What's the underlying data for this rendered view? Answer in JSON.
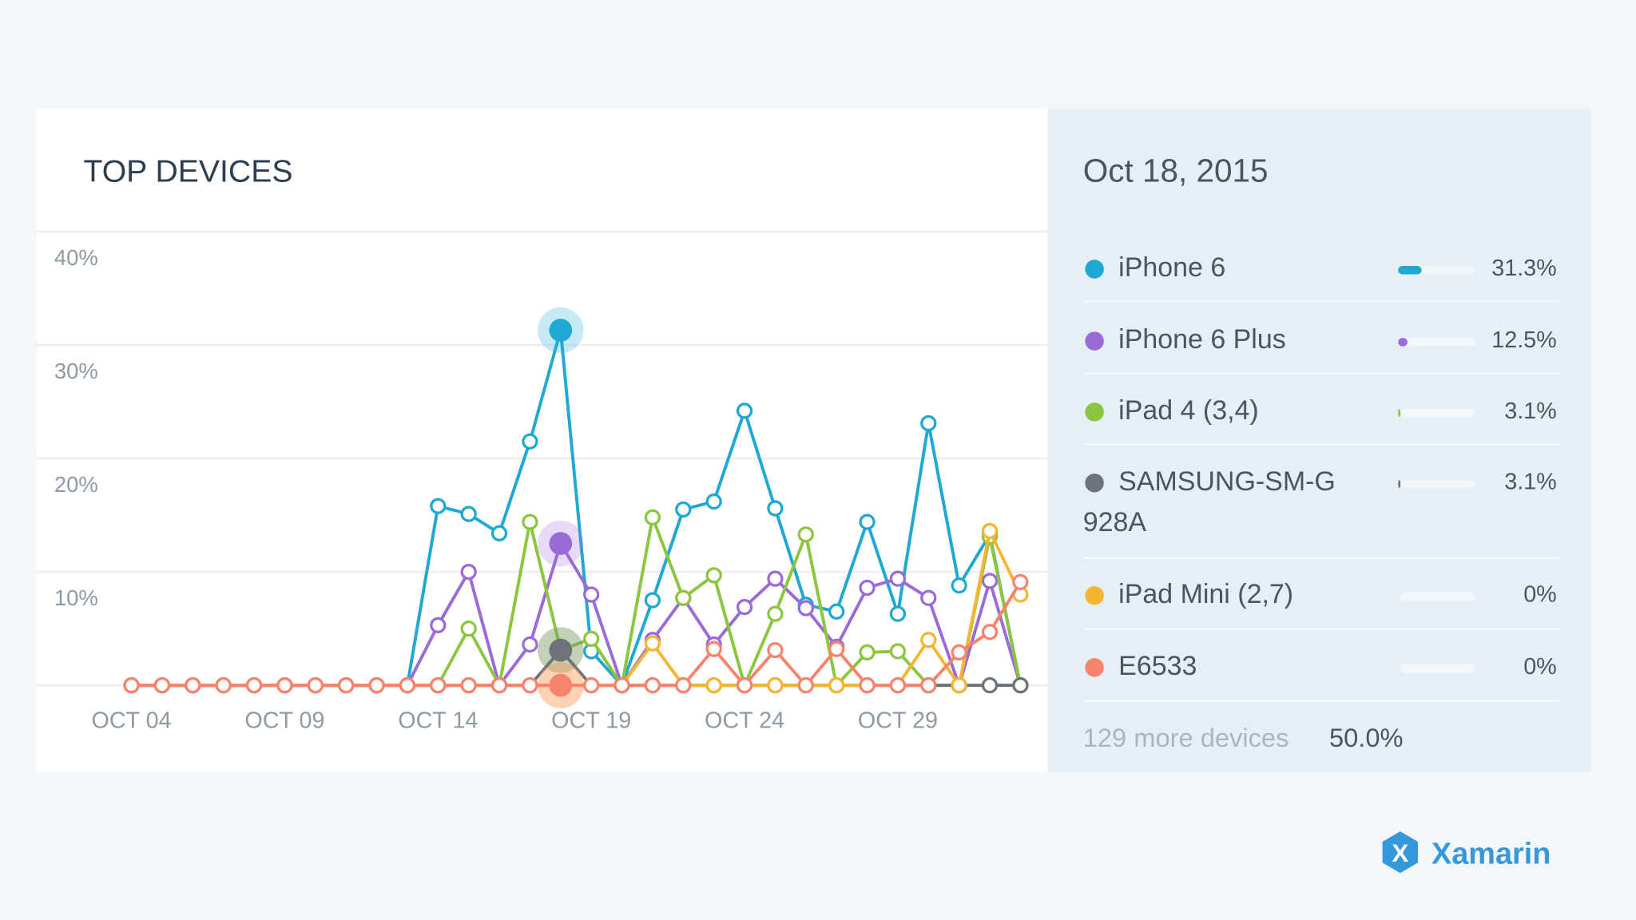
{
  "chart_data": {
    "type": "line",
    "title": "TOP DEVICES",
    "categories": [
      "OCT 04",
      null,
      null,
      null,
      null,
      "OCT 09",
      null,
      null,
      null,
      null,
      "OCT 14",
      null,
      null,
      null,
      null,
      "OCT 19",
      null,
      null,
      null,
      null,
      "OCT 24",
      null,
      null,
      null,
      null,
      "OCT 29",
      null,
      null,
      null,
      null
    ],
    "series": [
      {
        "name": "iPhone 6",
        "color": "#1fa8d2",
        "values": [
          0,
          0,
          0,
          0,
          0,
          0,
          0,
          0,
          0,
          0,
          15.8,
          15.1,
          13.4,
          21.5,
          31.3,
          3,
          0,
          7.5,
          15.5,
          16.2,
          24.2,
          15.6,
          7.1,
          6.5,
          14.4,
          6.3,
          23.1,
          8.8,
          13.3,
          0
        ]
      },
      {
        "name": "iPhone 6 Plus",
        "color": "#9a6bd6",
        "values": [
          0,
          0,
          0,
          0,
          0,
          0,
          0,
          0,
          0,
          0,
          5.3,
          10,
          0,
          3.6,
          12.5,
          8,
          0,
          4,
          7.7,
          3.6,
          6.9,
          9.4,
          6.8,
          3.4,
          8.6,
          9.4,
          7.7,
          0,
          9.2,
          0
        ]
      },
      {
        "name": "iPad 4 (3,4)",
        "color": "#8cc63f",
        "values": [
          0,
          0,
          0,
          0,
          0,
          0,
          0,
          0,
          0,
          0,
          0,
          5,
          0,
          14.4,
          3.1,
          4.1,
          0,
          14.8,
          7.7,
          9.7,
          0,
          6.3,
          13.3,
          0,
          2.9,
          3,
          0,
          0,
          13.1,
          0
        ]
      },
      {
        "name": "SAMSUNG-SM-G\n928A",
        "color": "#6d7378",
        "values": [
          0,
          0,
          0,
          0,
          0,
          0,
          0,
          0,
          0,
          0,
          0,
          0,
          0,
          0,
          3.1,
          0,
          0,
          0,
          0,
          0,
          0,
          0,
          0,
          0,
          0,
          0,
          0,
          0,
          0,
          0
        ]
      },
      {
        "name": "iPad Mini (2,7)",
        "color": "#f5b52e",
        "values": [
          0,
          0,
          0,
          0,
          0,
          0,
          0,
          0,
          0,
          0,
          0,
          0,
          0,
          0,
          0,
          0,
          0,
          3.7,
          0,
          0,
          0,
          0,
          0,
          0,
          0,
          0,
          4,
          0,
          13.6,
          8
        ]
      },
      {
        "name": "E6533",
        "color": "#f7836d",
        "values": [
          0,
          0,
          0,
          0,
          0,
          0,
          0,
          0,
          0,
          0,
          0,
          0,
          0,
          0,
          0,
          0,
          0,
          0,
          0,
          3.2,
          0,
          3.1,
          0,
          3.2,
          0,
          0,
          0,
          2.9,
          4.7,
          9.1
        ]
      }
    ],
    "ylim": [
      0,
      40
    ],
    "yticks": [
      {
        "value": 10,
        "label": "10%"
      },
      {
        "value": 20,
        "label": "20%"
      },
      {
        "value": 30,
        "label": "30%"
      },
      {
        "value": 40,
        "label": "40%"
      }
    ],
    "grid": true,
    "selected_index": 14
  },
  "panel": {
    "date": "Oct 18, 2015",
    "values": [
      31.3,
      12.5,
      3.1,
      3.1,
      0,
      0
    ],
    "value_labels": [
      "31.3%",
      "12.5%",
      "3.1%",
      "3.1%",
      "0%",
      "0%"
    ],
    "more_label": "129 more devices",
    "more_value": 50.0,
    "more_value_label": "50.0%"
  },
  "brand": "Xamarin"
}
